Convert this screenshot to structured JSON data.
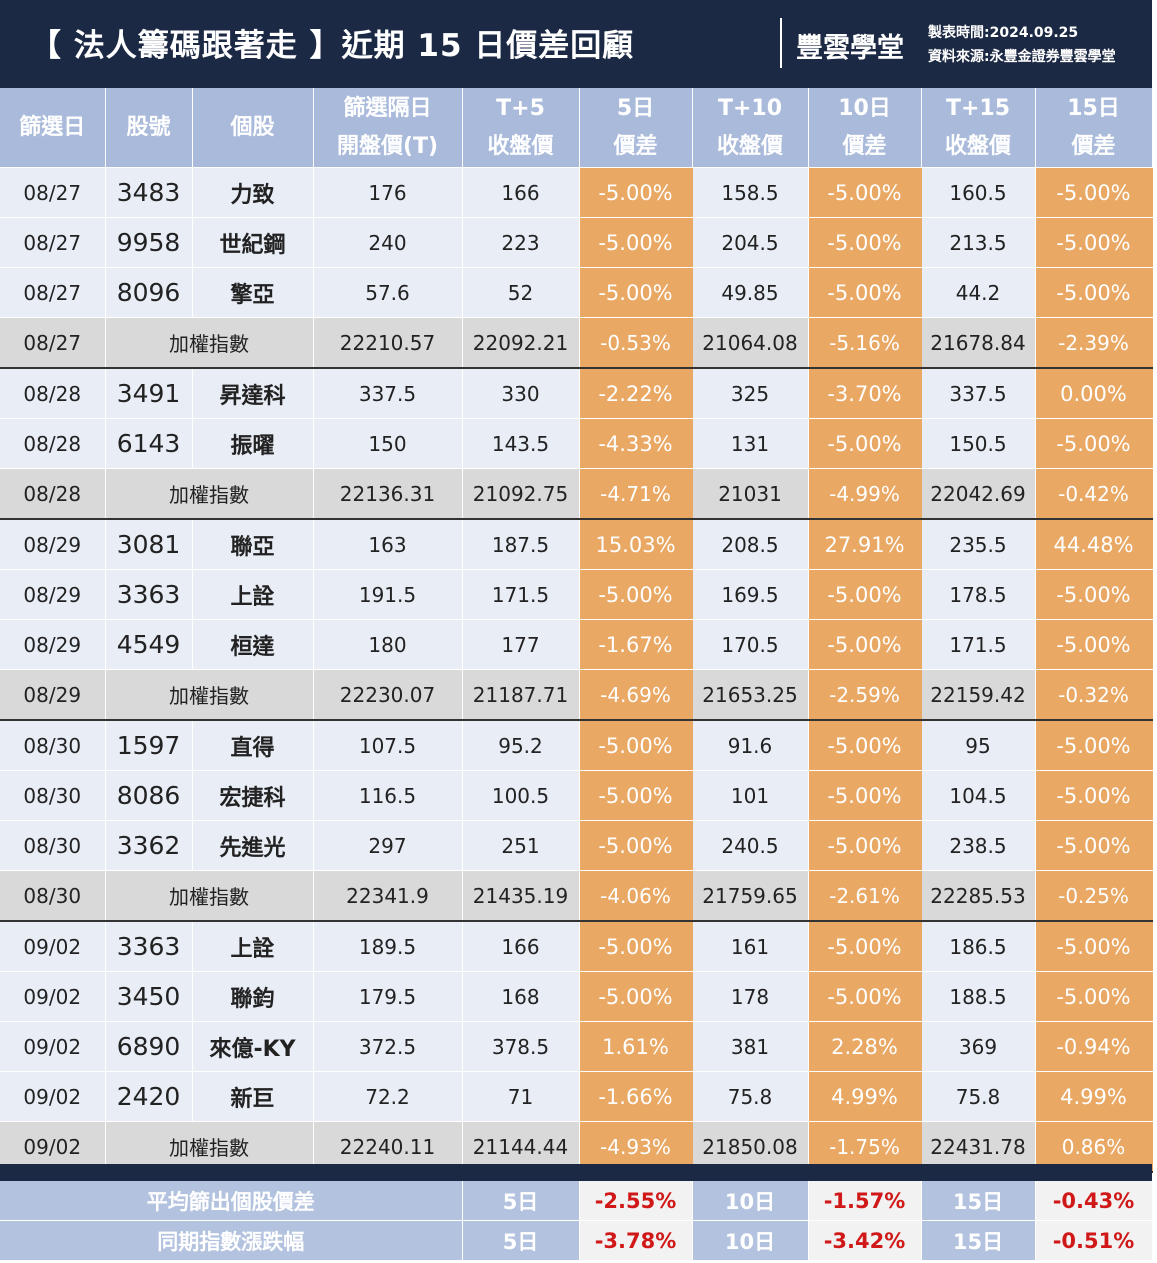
{
  "header": {
    "title": "【 法人籌碼跟著走 】近期 15 日價差回顧",
    "brand": "豐雲學堂",
    "date": "製表時間:2024.09.25",
    "source": "資料來源:永豐金證券豐雲學堂"
  },
  "table": {
    "columns": [
      [
        "篩選日"
      ],
      [
        "股號"
      ],
      [
        "個股"
      ],
      [
        "篩選隔日",
        "開盤價(T)"
      ],
      [
        "T+5",
        "收盤價"
      ],
      [
        "5日",
        "價差"
      ],
      [
        "T+10",
        "收盤價"
      ],
      [
        "10日",
        "價差"
      ],
      [
        "T+15",
        "收盤價"
      ],
      [
        "15日",
        "價差"
      ]
    ],
    "rows": [
      [
        "08/27",
        "3483",
        "力致",
        "176",
        "166",
        "-5.00%",
        "158.5",
        "-5.00%",
        "160.5",
        "-5.00%"
      ],
      [
        "08/27",
        "9958",
        "世紀鋼",
        "240",
        "223",
        "-5.00%",
        "204.5",
        "-5.00%",
        "213.5",
        "-5.00%"
      ],
      [
        "08/27",
        "8096",
        "擎亞",
        "57.6",
        "52",
        "-5.00%",
        "49.85",
        "-5.00%",
        "44.2",
        "-5.00%"
      ],
      [
        "08/27",
        "加權指數",
        "22210.57",
        "22092.21",
        "-0.53%",
        "21064.08",
        "-5.16%",
        "21678.84",
        "-2.39%"
      ],
      [
        "08/28",
        "3491",
        "昇達科",
        "337.5",
        "330",
        "-2.22%",
        "325",
        "-3.70%",
        "337.5",
        "0.00%"
      ],
      [
        "08/28",
        "6143",
        "振曜",
        "150",
        "143.5",
        "-4.33%",
        "131",
        "-5.00%",
        "150.5",
        "-5.00%"
      ],
      [
        "08/28",
        "加權指數",
        "22136.31",
        "21092.75",
        "-4.71%",
        "21031",
        "-4.99%",
        "22042.69",
        "-0.42%"
      ],
      [
        "08/29",
        "3081",
        "聯亞",
        "163",
        "187.5",
        "15.03%",
        "208.5",
        "27.91%",
        "235.5",
        "44.48%"
      ],
      [
        "08/29",
        "3363",
        "上詮",
        "191.5",
        "171.5",
        "-5.00%",
        "169.5",
        "-5.00%",
        "178.5",
        "-5.00%"
      ],
      [
        "08/29",
        "4549",
        "桓達",
        "180",
        "177",
        "-1.67%",
        "170.5",
        "-5.00%",
        "171.5",
        "-5.00%"
      ],
      [
        "08/29",
        "加權指數",
        "22230.07",
        "21187.71",
        "-4.69%",
        "21653.25",
        "-2.59%",
        "22159.42",
        "-0.32%"
      ],
      [
        "08/30",
        "1597",
        "直得",
        "107.5",
        "95.2",
        "-5.00%",
        "91.6",
        "-5.00%",
        "95",
        "-5.00%"
      ],
      [
        "08/30",
        "8086",
        "宏捷科",
        "116.5",
        "100.5",
        "-5.00%",
        "101",
        "-5.00%",
        "104.5",
        "-5.00%"
      ],
      [
        "08/30",
        "3362",
        "先進光",
        "297",
        "251",
        "-5.00%",
        "240.5",
        "-5.00%",
        "238.5",
        "-5.00%"
      ],
      [
        "08/30",
        "加權指數",
        "22341.9",
        "21435.19",
        "-4.06%",
        "21759.65",
        "-2.61%",
        "22285.53",
        "-0.25%"
      ],
      [
        "09/02",
        "3363",
        "上詮",
        "189.5",
        "166",
        "-5.00%",
        "161",
        "-5.00%",
        "186.5",
        "-5.00%"
      ],
      [
        "09/02",
        "3450",
        "聯鈞",
        "179.5",
        "168",
        "-5.00%",
        "178",
        "-5.00%",
        "188.5",
        "-5.00%"
      ],
      [
        "09/02",
        "6890",
        "來億-KY",
        "372.5",
        "378.5",
        "1.61%",
        "381",
        "2.28%",
        "369",
        "-0.94%"
      ],
      [
        "09/02",
        "2420",
        "新巨",
        "72.2",
        "71",
        "-1.66%",
        "75.8",
        "4.99%",
        "75.8",
        "4.99%"
      ],
      [
        "09/02",
        "加權指數",
        "22240.11",
        "21144.44",
        "-4.93%",
        "21850.08",
        "-1.75%",
        "22431.78",
        "0.86%"
      ]
    ]
  },
  "summary": [
    {
      "label": "平均篩出個股價差",
      "cells": [
        "5日",
        "-2.55%",
        "10日",
        "-1.57%",
        "15日",
        "-0.43%"
      ]
    },
    {
      "label": "同期指數漲跌幅",
      "cells": [
        "5日",
        "-3.78%",
        "10日",
        "-3.42%",
        "15日",
        "-0.51%"
      ]
    }
  ]
}
